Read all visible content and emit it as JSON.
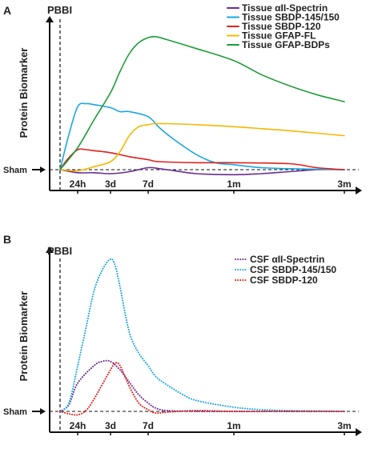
{
  "chart_data": [
    {
      "panel": "A",
      "type": "line",
      "ylabel": "Protein Biomarker",
      "event_label": "PBBI",
      "baseline_label": "Sham",
      "x_ticks": [
        "24h",
        "3d",
        "7d",
        "1m",
        "3m"
      ],
      "x_tick_positions": [
        1,
        3,
        7,
        30,
        90
      ],
      "line_style": "solid",
      "legend": "top-right",
      "series": [
        {
          "name": "Tissue αII-Spectrin",
          "color": "#6a2c91",
          "x": [
            0,
            1,
            2,
            3,
            5,
            7,
            10,
            14,
            20,
            30,
            45,
            60,
            75,
            90
          ],
          "y": [
            0,
            -0.03,
            -0.03,
            -0.04,
            -0.02,
            0.02,
            0.01,
            -0.01,
            -0.04,
            -0.05,
            -0.04,
            -0.02,
            0,
            0
          ]
        },
        {
          "name": "Tissue SBDP-145/150",
          "color": "#1aa7e0",
          "x": [
            0,
            0.5,
            1,
            1.5,
            2,
            3,
            4,
            5,
            7,
            10,
            14,
            20,
            25,
            30,
            45,
            60,
            90
          ],
          "y": [
            0,
            0.35,
            0.63,
            0.66,
            0.65,
            0.62,
            0.58,
            0.58,
            0.53,
            0.42,
            0.3,
            0.15,
            0.07,
            0.05,
            0.02,
            0.01,
            0
          ]
        },
        {
          "name": "Tissue SBDP-120",
          "color": "#e0201b",
          "x": [
            0,
            0.4,
            1,
            1.5,
            2,
            3,
            5,
            7,
            10,
            20,
            30,
            60,
            75,
            90
          ],
          "y": [
            0,
            0.1,
            0.2,
            0.2,
            0.19,
            0.17,
            0.13,
            0.1,
            0.08,
            0.07,
            0.07,
            0.06,
            0.02,
            0
          ]
        },
        {
          "name": "Tissue GFAP-FL",
          "color": "#f5b800",
          "x": [
            0,
            1,
            2,
            3,
            4,
            5,
            6,
            7,
            9,
            12,
            20,
            30,
            45,
            60,
            90
          ],
          "y": [
            0,
            -0.01,
            0.03,
            0.08,
            0.18,
            0.34,
            0.43,
            0.45,
            0.46,
            0.46,
            0.45,
            0.43,
            0.41,
            0.39,
            0.34
          ]
        },
        {
          "name": "Tissue GFAP-BDPs",
          "color": "#1e9c3a",
          "x": [
            0,
            1,
            2,
            3,
            4,
            5,
            6,
            7,
            9,
            12,
            20,
            30,
            45,
            60,
            75,
            90
          ],
          "y": [
            0,
            0.22,
            0.5,
            0.77,
            0.98,
            1.16,
            1.27,
            1.32,
            1.33,
            1.3,
            1.21,
            1.09,
            0.95,
            0.84,
            0.75,
            0.68
          ]
        }
      ]
    },
    {
      "panel": "B",
      "type": "line",
      "ylabel": "Protein Biomarker",
      "event_label": "PBBI",
      "baseline_label": "Sham",
      "x_ticks": [
        "24h",
        "3d",
        "7d",
        "1m",
        "3m"
      ],
      "x_tick_positions": [
        1,
        3,
        7,
        30,
        90
      ],
      "line_style": "dotted",
      "legend": "top-right",
      "series": [
        {
          "name": "CSF αII-Spectrin",
          "color": "#6a2c91",
          "x": [
            0,
            0.5,
            1,
            2,
            2.5,
            3,
            4,
            5,
            6,
            7,
            9,
            12,
            20,
            30,
            60,
            90
          ],
          "y": [
            0,
            0.08,
            0.34,
            0.55,
            0.6,
            0.6,
            0.5,
            0.35,
            0.2,
            0.1,
            0.04,
            0.01,
            0,
            0,
            0,
            0
          ]
        },
        {
          "name": "CSF SBDP-145/150",
          "color": "#1aa7e0",
          "x": [
            0,
            0.5,
            1,
            1.5,
            2,
            2.5,
            3,
            3.5,
            4,
            5,
            6,
            7,
            9,
            12,
            16,
            20,
            30,
            45,
            60,
            90
          ],
          "y": [
            0,
            0.1,
            0.55,
            1.0,
            1.45,
            1.7,
            1.83,
            1.75,
            1.5,
            0.95,
            0.7,
            0.55,
            0.42,
            0.32,
            0.21,
            0.13,
            0.05,
            0.02,
            0.01,
            0
          ]
        },
        {
          "name": "CSF SBDP-120",
          "color": "#e0201b",
          "x": [
            0,
            0.5,
            1,
            1.5,
            2,
            3,
            3.5,
            4,
            5,
            6,
            7,
            9,
            12,
            20,
            30,
            60,
            90
          ],
          "y": [
            0,
            -0.03,
            -0.04,
            0.01,
            0.15,
            0.5,
            0.58,
            0.55,
            0.3,
            0.1,
            0.02,
            -0.02,
            -0.01,
            0.01,
            0,
            0,
            0
          ]
        }
      ]
    }
  ]
}
